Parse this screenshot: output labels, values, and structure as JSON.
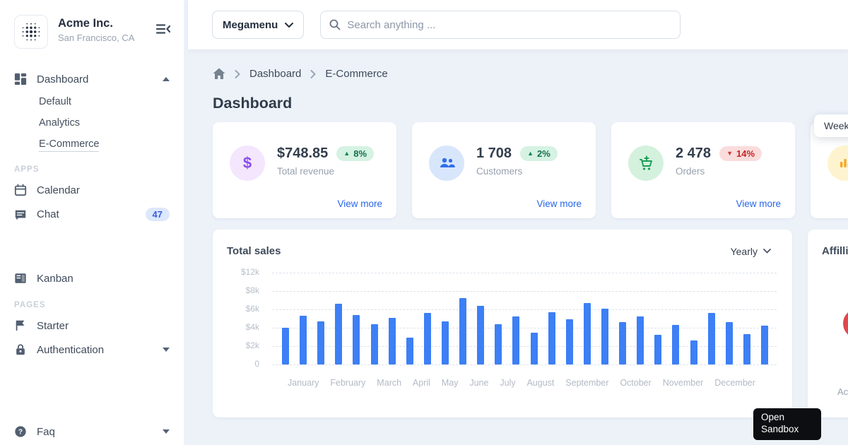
{
  "brand": {
    "name": "Acme Inc.",
    "location": "San Francisco, CA"
  },
  "topbar": {
    "megamenu_label": "Megamenu",
    "search_placeholder": "Search anything ..."
  },
  "breadcrumb": {
    "items": [
      "Dashboard",
      "E-Commerce"
    ]
  },
  "page_title": "Dashboard",
  "sidebar": {
    "dashboard": {
      "label": "Dashboard",
      "children": [
        "Default",
        "Analytics",
        "E-Commerce"
      ],
      "active_child": "E-Commerce"
    },
    "sections": [
      {
        "heading": "APPS",
        "items": [
          {
            "label": "Calendar"
          },
          {
            "label": "Chat",
            "badge": "47"
          },
          {
            "label": "Kanban"
          }
        ]
      },
      {
        "heading": "PAGES",
        "items": [
          {
            "label": "Starter"
          },
          {
            "label": "Authentication"
          }
        ]
      }
    ],
    "faq_label": "Faq"
  },
  "stats": [
    {
      "icon": "dollar-sign",
      "icon_bg": "#f3e6fd",
      "icon_color": "#8a4df0",
      "value": "$748.85",
      "delta": "8%",
      "trend": "up",
      "label": "Total revenue",
      "link_label": "View more"
    },
    {
      "icon": "users",
      "icon_bg": "#d8e6fc",
      "icon_color": "#2f6fed",
      "value": "1 708",
      "delta": "2%",
      "trend": "up",
      "label": "Customers",
      "link_label": "View more"
    },
    {
      "icon": "cart-plus",
      "icon_bg": "#d4f1de",
      "icon_color": "#1b9e55",
      "value": "2 478",
      "delta": "14%",
      "trend": "down",
      "label": "Orders",
      "link_label": "View more"
    },
    {
      "icon": "bar-chart",
      "icon_bg": "#fdf4cf",
      "icon_color": "#f6a723"
    }
  ],
  "sales_card": {
    "title": "Total sales",
    "range_label": "Yearly"
  },
  "chart_data": {
    "type": "bar",
    "title": "Total sales",
    "range": "Yearly",
    "y_tick_labels": [
      "$12k",
      "$8k",
      "$6k",
      "$4k",
      "$2k",
      "0"
    ],
    "grid_step_usd_k": 2,
    "x_month_labels": [
      "January",
      "February",
      "March",
      "April",
      "May",
      "June",
      "July",
      "August",
      "September",
      "October",
      "November",
      "December"
    ],
    "values_usd_k": [
      4.0,
      5.3,
      4.7,
      6.6,
      5.4,
      4.4,
      5.1,
      2.9,
      5.6,
      4.7,
      7.2,
      6.4,
      4.4,
      5.2,
      3.5,
      5.7,
      4.9,
      6.7,
      6.1,
      4.6,
      5.2,
      3.2,
      4.3,
      2.6,
      5.6,
      4.6,
      3.3,
      4.2
    ],
    "bar_color": "#3d7ff5",
    "gridlines": "dashed",
    "legend": "none"
  },
  "affiliate_card": {
    "title": "Affillia",
    "footer_text": "Acr"
  },
  "overlays": {
    "weekly_popup_label": "Weekly",
    "sandbox_button_label": "Open Sandbox"
  },
  "colors": {
    "accent_blue": "#3d7ff5",
    "link_blue": "#2666e8",
    "content_bg": "#edf2f9",
    "positive_bg": "#d5f2e2",
    "positive_text": "#15724c",
    "negative_bg": "#fadcdc",
    "negative_text": "#c22525",
    "chat_badge_bg": "#dde8fc",
    "chat_badge_text": "#3a60e0",
    "gauge_red": "#e2474d",
    "sandbox_btn_bg": "#0c0e11"
  }
}
